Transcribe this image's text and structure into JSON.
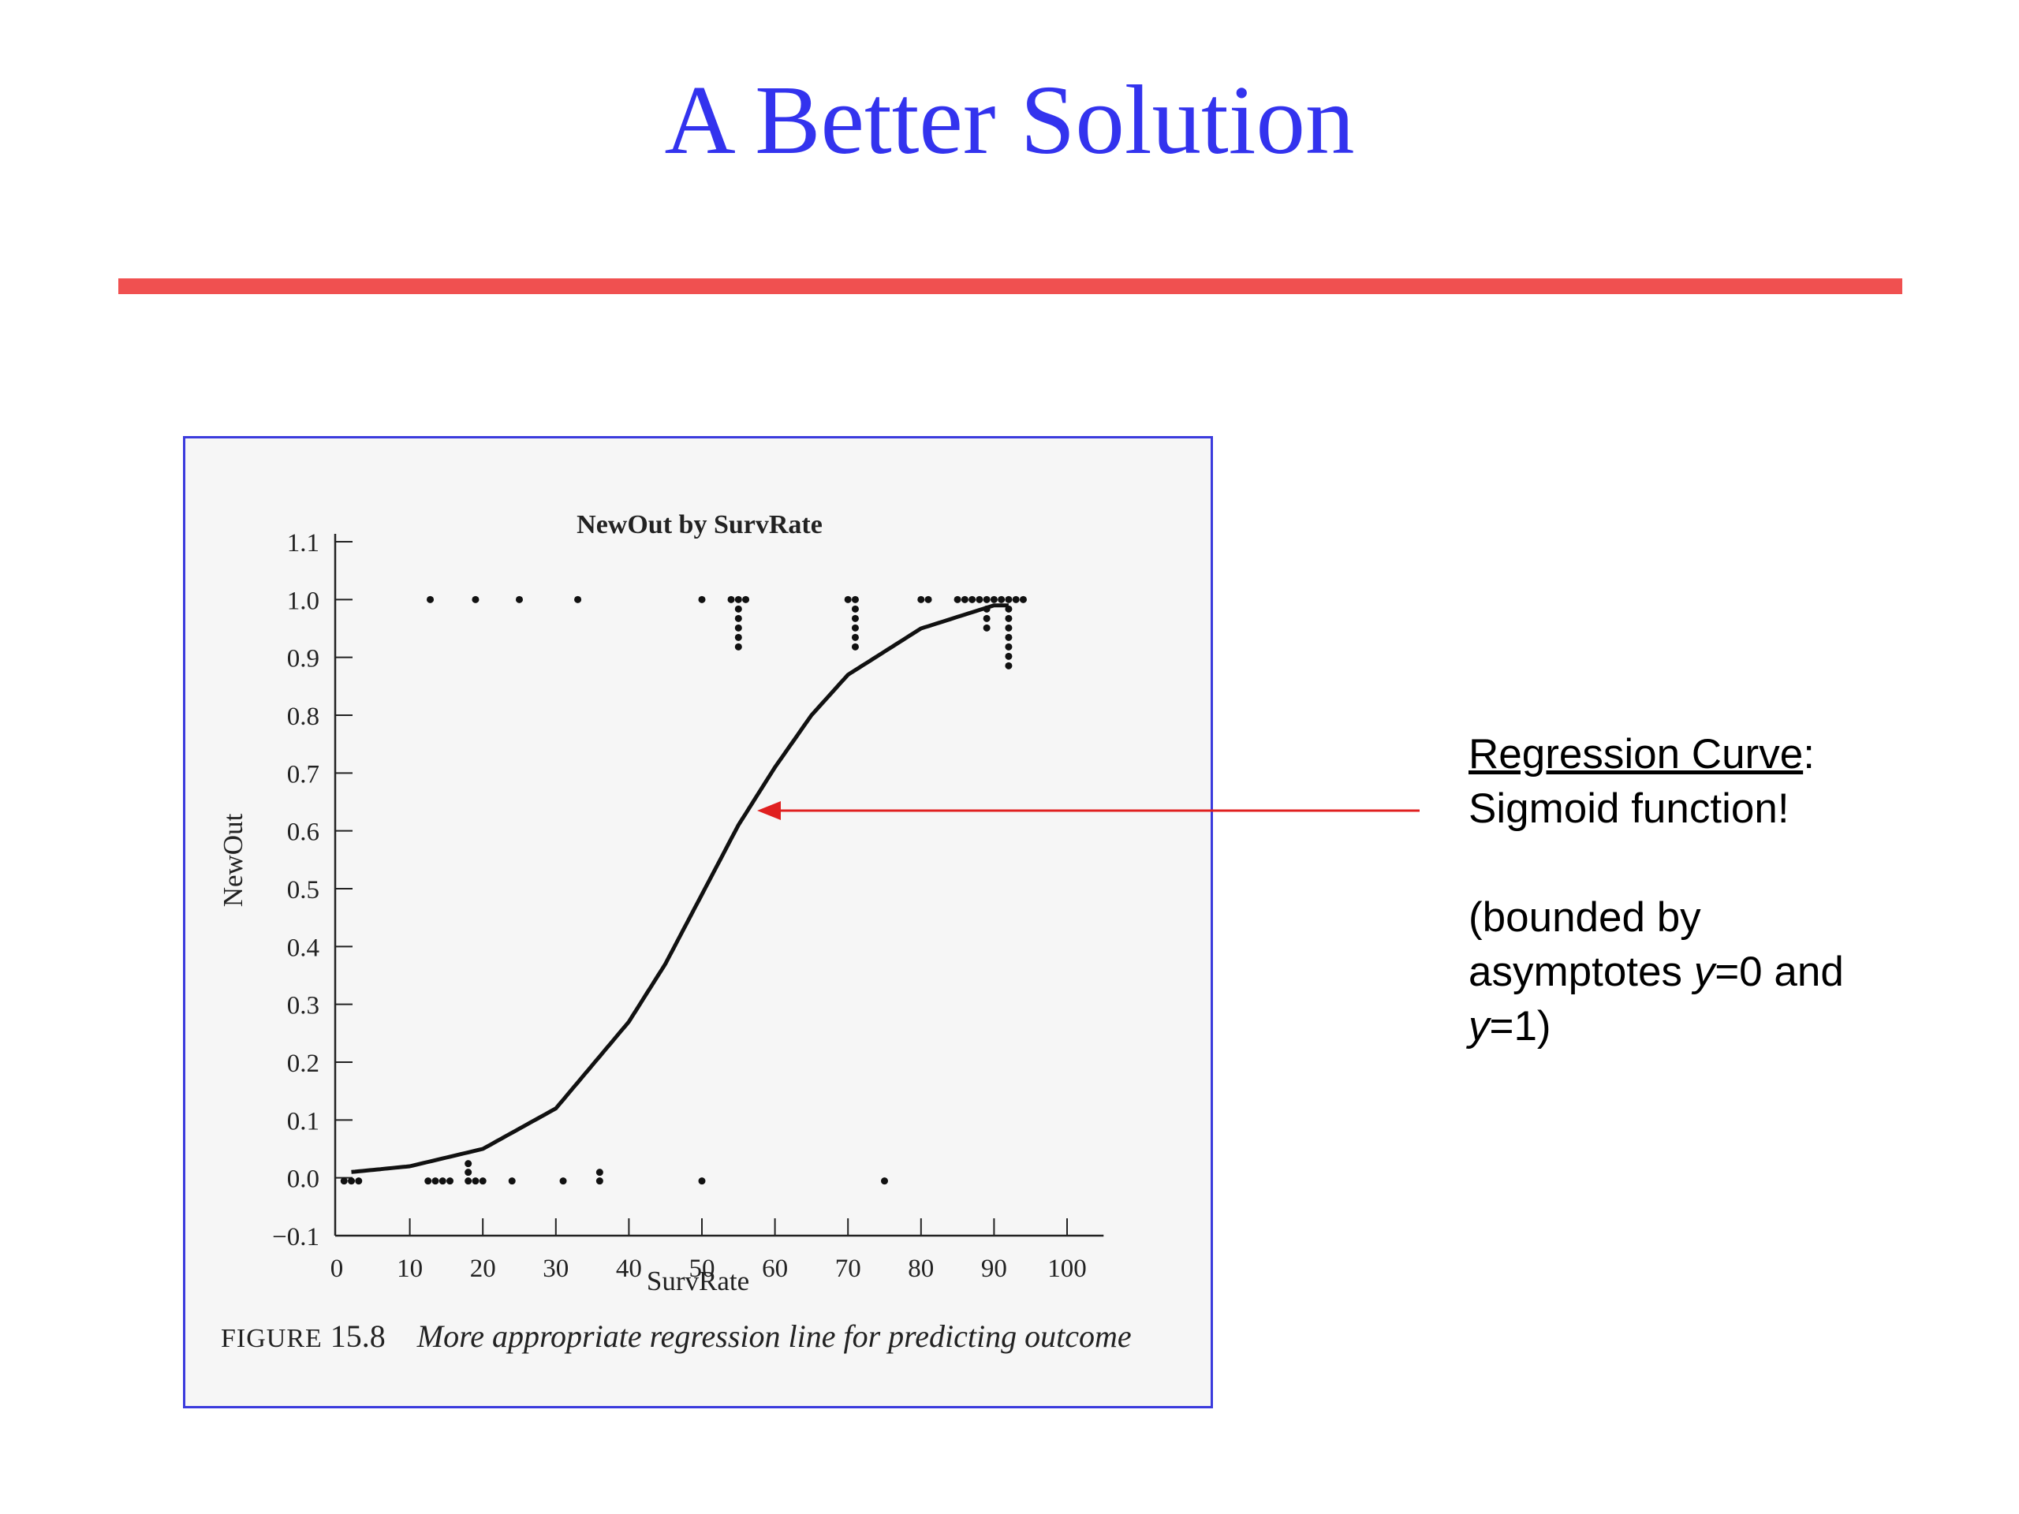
{
  "slide": {
    "title": "A Better Solution",
    "title_color": "#3333ee",
    "rule_color": "#f05050"
  },
  "annotation": {
    "heading": "Regression Curve",
    "heading_suffix": ":",
    "line2": "Sigmoid function!",
    "note_open": "(bounded by",
    "note_asym": "asymptotes ",
    "y_var": "y",
    "eq0": "=0 and",
    "eq1": "=1)",
    "arrow_color": "#e02020"
  },
  "figure": {
    "caption_label": "FIGURE",
    "caption_number": "15.8",
    "caption_text": "More appropriate regression line for predicting outcome",
    "border_color": "#3b3bdd"
  },
  "chart_data": {
    "type": "scatter",
    "title": "NewOut by SurvRate",
    "xlabel": "SurvRate",
    "ylabel": "NewOut",
    "xlim": [
      0,
      105
    ],
    "ylim": [
      -0.1,
      1.1
    ],
    "xticks": [
      0,
      10,
      20,
      30,
      40,
      50,
      60,
      70,
      80,
      90,
      100
    ],
    "yticks": [
      -0.1,
      0.0,
      0.1,
      0.2,
      0.3,
      0.4,
      0.5,
      0.6,
      0.7,
      0.8,
      0.9,
      1.0,
      1.1
    ],
    "ytick_labels": [
      "−0.1",
      "0.0",
      "0.1",
      "0.2",
      "0.3",
      "0.4",
      "0.5",
      "0.6",
      "0.7",
      "0.8",
      "0.9",
      "1.0",
      "1.1"
    ],
    "xtick_labels": [
      "0",
      "10",
      "20",
      "30",
      "40",
      "50",
      "60",
      "70",
      "80",
      "90",
      "100"
    ],
    "grid": false,
    "points_outcome_1": [
      12.8,
      19,
      25,
      33,
      50,
      54,
      55,
      56,
      70,
      71,
      80,
      81,
      85,
      86,
      87,
      88,
      89,
      90,
      91,
      92,
      93,
      94
    ],
    "points_outcome_0": [
      1,
      2,
      3,
      12.5,
      13.5,
      14.5,
      15.5,
      18,
      19,
      20,
      24,
      31,
      36,
      50,
      75
    ],
    "curve": {
      "function": "sigmoid",
      "x": [
        2,
        10,
        20,
        30,
        40,
        45,
        50,
        55,
        60,
        65,
        70,
        80,
        90,
        92
      ],
      "y": [
        0.01,
        0.02,
        0.05,
        0.12,
        0.27,
        0.37,
        0.49,
        0.61,
        0.71,
        0.8,
        0.87,
        0.95,
        0.99,
        0.99
      ]
    }
  }
}
